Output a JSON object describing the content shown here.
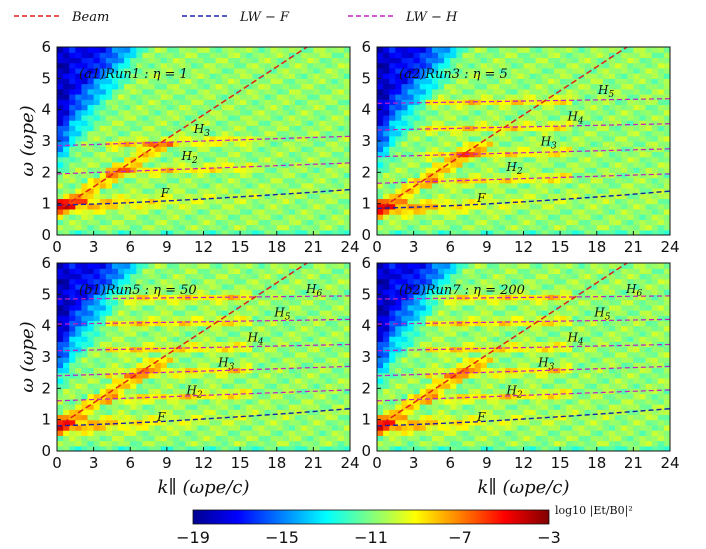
{
  "chart_data": {
    "type": "heatmap",
    "legend": [
      {
        "name": "Beam",
        "color": "#e0201a"
      },
      {
        "name": "LW − F",
        "color": "#1a22a8"
      },
      {
        "name": "LW − H",
        "color": "#c020c0"
      }
    ],
    "xlabel": "k∥ (ωpe/c)",
    "ylabel": "ω (ωpe)",
    "xlim": [
      0,
      24
    ],
    "ylim": [
      0,
      6
    ],
    "xticks": [
      "0",
      "3",
      "6",
      "9",
      "12",
      "15",
      "18",
      "21",
      "24"
    ],
    "yticks": [
      "0",
      "1",
      "2",
      "3",
      "4",
      "5",
      "6"
    ],
    "colorbar": {
      "label": "log10 |Et/B0|²",
      "range": [
        -19,
        -3
      ],
      "ticks": [
        "−19",
        "−15",
        "−11",
        "−7",
        "−3"
      ],
      "colors": [
        "#00008f",
        "#0000ff",
        "#0080ff",
        "#00ffff",
        "#80ff80",
        "#ffff00",
        "#ff8000",
        "#ff0000",
        "#800000"
      ]
    },
    "panels": [
      {
        "id": "a1",
        "title": "(a1)Run1 : η = 1",
        "beam_line": {
          "x": [
            0.5,
            24
          ],
          "y": [
            0.9,
            6.9
          ]
        },
        "lw_f": {
          "x": [
            0,
            4,
            8,
            12,
            16,
            20,
            24
          ],
          "y": [
            0.95,
            1.0,
            1.07,
            1.15,
            1.24,
            1.34,
            1.45
          ]
        },
        "lw_h": [
          {
            "label": "H2",
            "x": [
              0,
              24
            ],
            "y": [
              1.95,
              2.3
            ],
            "label_x": 10.2,
            "label_y": 2.4
          },
          {
            "label": "H3",
            "x": [
              0,
              24
            ],
            "y": [
              2.85,
              3.15
            ],
            "label_x": 11.2,
            "label_y": 3.25
          }
        ],
        "f_label_x": 8.5,
        "f_label_y": 1.22
      },
      {
        "id": "a2",
        "title": "(a2)Run3 : η = 5",
        "beam_line": {
          "x": [
            0.5,
            24
          ],
          "y": [
            0.9,
            6.9
          ]
        },
        "lw_f": {
          "x": [
            0,
            4,
            8,
            12,
            16,
            20,
            24
          ],
          "y": [
            0.85,
            0.9,
            0.97,
            1.06,
            1.16,
            1.27,
            1.4
          ]
        },
        "lw_h": [
          {
            "label": "H2",
            "x": [
              0,
              24
            ],
            "y": [
              1.65,
              1.95
            ],
            "label_x": 10.6,
            "label_y": 2.05
          },
          {
            "label": "H3",
            "x": [
              0,
              24
            ],
            "y": [
              2.5,
              2.75
            ],
            "label_x": 13.4,
            "label_y": 2.85
          },
          {
            "label": "H4",
            "x": [
              0,
              24
            ],
            "y": [
              3.35,
              3.55
            ],
            "label_x": 15.6,
            "label_y": 3.65
          },
          {
            "label": "H5",
            "x": [
              0,
              24
            ],
            "y": [
              4.2,
              4.35
            ],
            "label_x": 18.1,
            "label_y": 4.5
          }
        ],
        "f_label_x": 8.2,
        "f_label_y": 1.05
      },
      {
        "id": "b1",
        "title": "(b1)Run5 : η = 50",
        "beam_line": {
          "x": [
            0.5,
            24
          ],
          "y": [
            0.9,
            6.9
          ]
        },
        "lw_f": {
          "x": [
            0,
            4,
            8,
            12,
            16,
            20,
            24
          ],
          "y": [
            0.8,
            0.86,
            0.93,
            1.02,
            1.12,
            1.23,
            1.35
          ]
        },
        "lw_h": [
          {
            "label": "H2",
            "x": [
              0,
              24
            ],
            "y": [
              1.6,
              1.95
            ],
            "label_x": 10.6,
            "label_y": 1.8
          },
          {
            "label": "H3",
            "x": [
              0,
              24
            ],
            "y": [
              2.4,
              2.7
            ],
            "label_x": 13.2,
            "label_y": 2.7
          },
          {
            "label": "H4",
            "x": [
              0,
              24
            ],
            "y": [
              3.2,
              3.4
            ],
            "label_x": 15.6,
            "label_y": 3.5
          },
          {
            "label": "H5",
            "x": [
              0,
              24
            ],
            "y": [
              4.05,
              4.2
            ],
            "label_x": 17.8,
            "label_y": 4.3
          },
          {
            "label": "H6",
            "x": [
              0,
              24
            ],
            "y": [
              4.85,
              4.95
            ],
            "label_x": 20.4,
            "label_y": 5.05
          }
        ],
        "f_label_x": 8.2,
        "f_label_y": 0.95
      },
      {
        "id": "b2",
        "title": "(b2)Run7 : η = 200",
        "beam_line": {
          "x": [
            0.5,
            24
          ],
          "y": [
            0.9,
            6.9
          ]
        },
        "lw_f": {
          "x": [
            0,
            4,
            8,
            12,
            16,
            20,
            24
          ],
          "y": [
            0.8,
            0.86,
            0.93,
            1.02,
            1.12,
            1.23,
            1.35
          ]
        },
        "lw_h": [
          {
            "label": "H2",
            "x": [
              0,
              24
            ],
            "y": [
              1.6,
              1.95
            ],
            "label_x": 10.6,
            "label_y": 1.8
          },
          {
            "label": "H3",
            "x": [
              0,
              24
            ],
            "y": [
              2.4,
              2.7
            ],
            "label_x": 13.2,
            "label_y": 2.7
          },
          {
            "label": "H4",
            "x": [
              0,
              24
            ],
            "y": [
              3.2,
              3.4
            ],
            "label_x": 15.6,
            "label_y": 3.5
          },
          {
            "label": "H5",
            "x": [
              0,
              24
            ],
            "y": [
              4.05,
              4.2
            ],
            "label_x": 17.8,
            "label_y": 4.3
          },
          {
            "label": "H6",
            "x": [
              0,
              24
            ],
            "y": [
              4.85,
              4.95
            ],
            "label_x": 20.4,
            "label_y": 5.05
          }
        ],
        "f_label_x": 8.2,
        "f_label_y": 0.95
      }
    ]
  }
}
